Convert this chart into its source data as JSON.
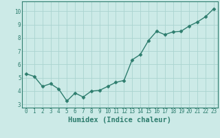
{
  "x": [
    0,
    1,
    2,
    3,
    4,
    5,
    6,
    7,
    8,
    9,
    10,
    11,
    12,
    13,
    14,
    15,
    16,
    17,
    18,
    19,
    20,
    21,
    22,
    23
  ],
  "y": [
    5.3,
    5.1,
    4.35,
    4.55,
    4.15,
    3.25,
    3.85,
    3.55,
    4.0,
    4.05,
    4.35,
    4.65,
    4.8,
    6.35,
    6.75,
    7.8,
    8.5,
    8.25,
    8.45,
    8.5,
    8.9,
    9.2,
    9.6,
    10.2
  ],
  "line_color": "#2e7d6e",
  "marker": "D",
  "marker_size": 2.5,
  "line_width": 1.0,
  "bg_color": "#cceae7",
  "grid_color": "#aad4d0",
  "xlabel": "Humidex (Indice chaleur)",
  "xlim": [
    -0.5,
    23.5
  ],
  "ylim": [
    2.75,
    10.75
  ],
  "yticks": [
    3,
    4,
    5,
    6,
    7,
    8,
    9,
    10
  ],
  "xticks": [
    0,
    1,
    2,
    3,
    4,
    5,
    6,
    7,
    8,
    9,
    10,
    11,
    12,
    13,
    14,
    15,
    16,
    17,
    18,
    19,
    20,
    21,
    22,
    23
  ],
  "tick_fontsize": 5.5,
  "xlabel_fontsize": 7.5,
  "axis_color": "#2e7d6e",
  "bottom_bar_color": "#3a6b65"
}
